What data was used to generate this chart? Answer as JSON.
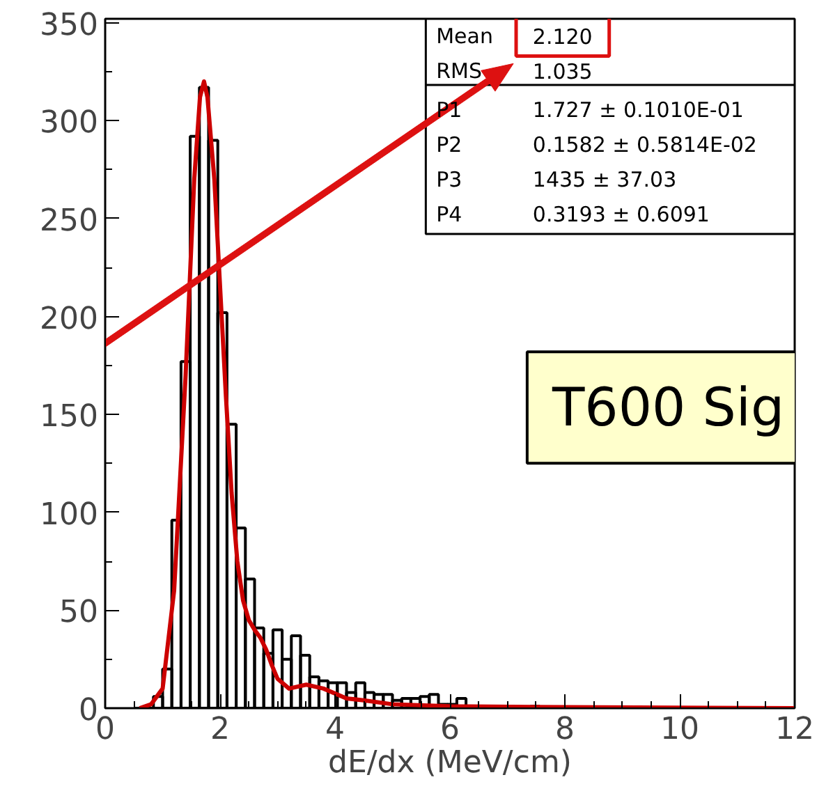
{
  "chart_data": {
    "type": "histogram",
    "xlabel": "dE/dx (MeV/cm)",
    "bins": [
      0.52,
      0.68,
      0.84,
      1.0,
      1.16,
      1.32,
      1.48,
      1.64,
      1.8,
      1.96,
      2.12,
      2.28,
      2.44,
      2.6,
      2.76,
      2.92,
      3.08,
      3.24,
      3.4,
      3.56,
      3.72,
      3.88,
      4.04,
      4.2,
      4.36,
      4.52,
      4.68,
      4.84,
      5.0,
      5.16,
      5.32,
      5.48,
      5.64,
      5.8,
      5.96,
      6.12,
      6.28,
      6.44,
      6.6,
      6.76,
      6.92,
      7.08,
      7.24,
      7.4,
      7.56
    ],
    "values": [
      0,
      0,
      6,
      20,
      96,
      177,
      292,
      317,
      290,
      202,
      145,
      92,
      66,
      41,
      28,
      40,
      25,
      37,
      27,
      16,
      14,
      13,
      13,
      8,
      13,
      8,
      7,
      7,
      4,
      5,
      5,
      6,
      7,
      2,
      2,
      5,
      1,
      1,
      0,
      0,
      0,
      0,
      0,
      1
    ],
    "color": "#000000",
    "series": [
      {
        "type": "line",
        "color": "#cc0000",
        "x": [
          0.6,
          0.8,
          1.0,
          1.2,
          1.4,
          1.55,
          1.65,
          1.72,
          1.78,
          1.9,
          2.0,
          2.1,
          2.2,
          2.3,
          2.4,
          2.5,
          2.6,
          2.7,
          2.8,
          2.9,
          3.0,
          3.2,
          3.5,
          3.8,
          4.2,
          4.5,
          5.0,
          6.0,
          8.0,
          12.0
        ],
        "values": [
          0,
          2,
          10,
          60,
          170,
          270,
          312,
          320,
          312,
          270,
          215,
          160,
          110,
          75,
          55,
          45,
          40,
          36,
          30,
          22,
          15,
          10,
          12,
          10,
          5,
          4,
          2,
          1,
          0.5,
          0
        ]
      }
    ],
    "xlim": [
      0,
      12
    ],
    "ylim": [
      0,
      352
    ],
    "xticks": [
      0,
      2,
      4,
      6,
      8,
      10,
      12
    ],
    "yticks": [
      0,
      50,
      100,
      150,
      200,
      250,
      300,
      350
    ],
    "grid": false,
    "line_style": "solid",
    "annotations": [
      "Mean",
      "2.120",
      "RMS",
      "1.035",
      "P1",
      "1.727 ± 0.1010E-01",
      "P2",
      "0.1582 ± 0.5814E-02",
      "P3",
      "1435 ± 37.03",
      "P4",
      "0.3193 ± 0.6091",
      "T600 Sig"
    ]
  }
}
